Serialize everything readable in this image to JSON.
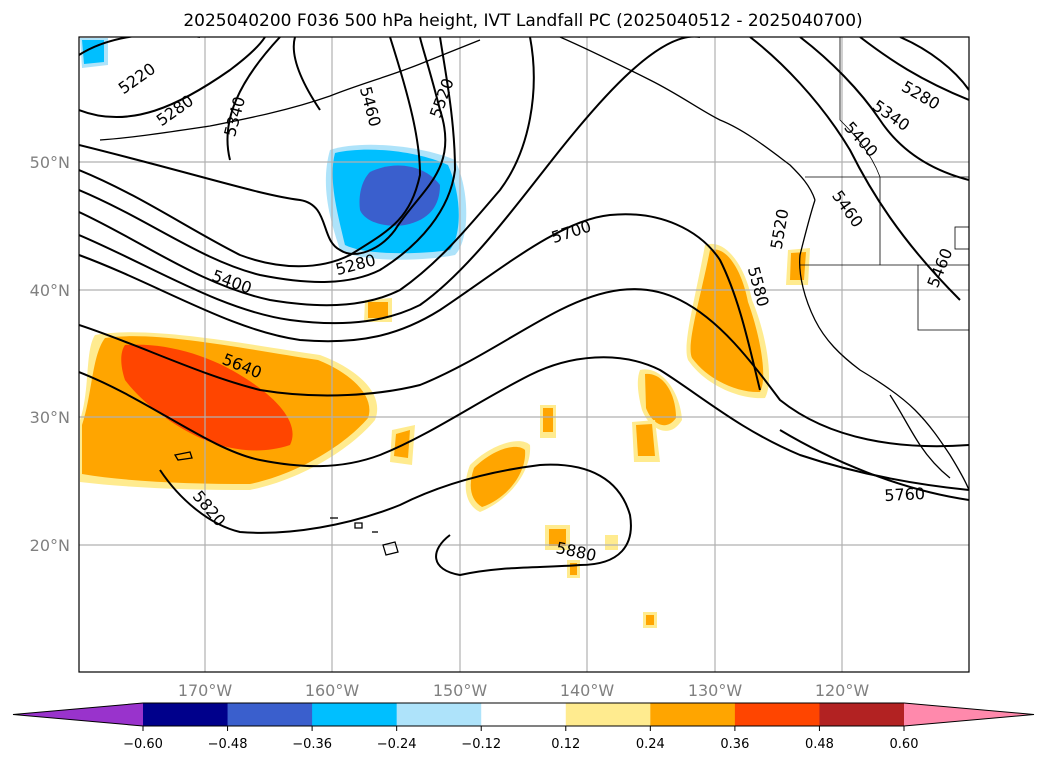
{
  "title": "2025040200 F036 500 hPa height, IVT Landfall PC (2025040512 - 2025040700)",
  "lat_labels": [
    "50°N",
    "40°N",
    "30°N",
    "20°N"
  ],
  "lon_labels": [
    "170°W",
    "160°W",
    "150°W",
    "140°W",
    "130°W",
    "120°W"
  ],
  "colorbar": {
    "ticks": [
      "−0.60",
      "−0.48",
      "−0.36",
      "−0.24",
      "−0.12",
      "0.12",
      "0.24",
      "0.36",
      "0.48",
      "0.60"
    ],
    "colors": [
      "#9933cc",
      "#00008b",
      "#3a5fcd",
      "#00bfff",
      "#aee3fa",
      "#ffffff",
      "#ffeb8f",
      "#ffa500",
      "#ff4500",
      "#b22222",
      "#ff89ac"
    ]
  },
  "contour_labels": [
    "5220",
    "5280",
    "5340",
    "5460",
    "5520",
    "5280",
    "5400",
    "5700",
    "5580",
    "5520",
    "5640",
    "5820",
    "5880",
    "5760",
    "5280",
    "5340",
    "5400",
    "5460",
    "5460"
  ],
  "legend_colors": {
    "neg_light": "#aee3fa",
    "neg_mid": "#00bfff",
    "neg_dark": "#3a5fcd",
    "pos_light": "#ffeb8f",
    "pos_mid": "#ffa500",
    "pos_dark": "#ff4500"
  }
}
